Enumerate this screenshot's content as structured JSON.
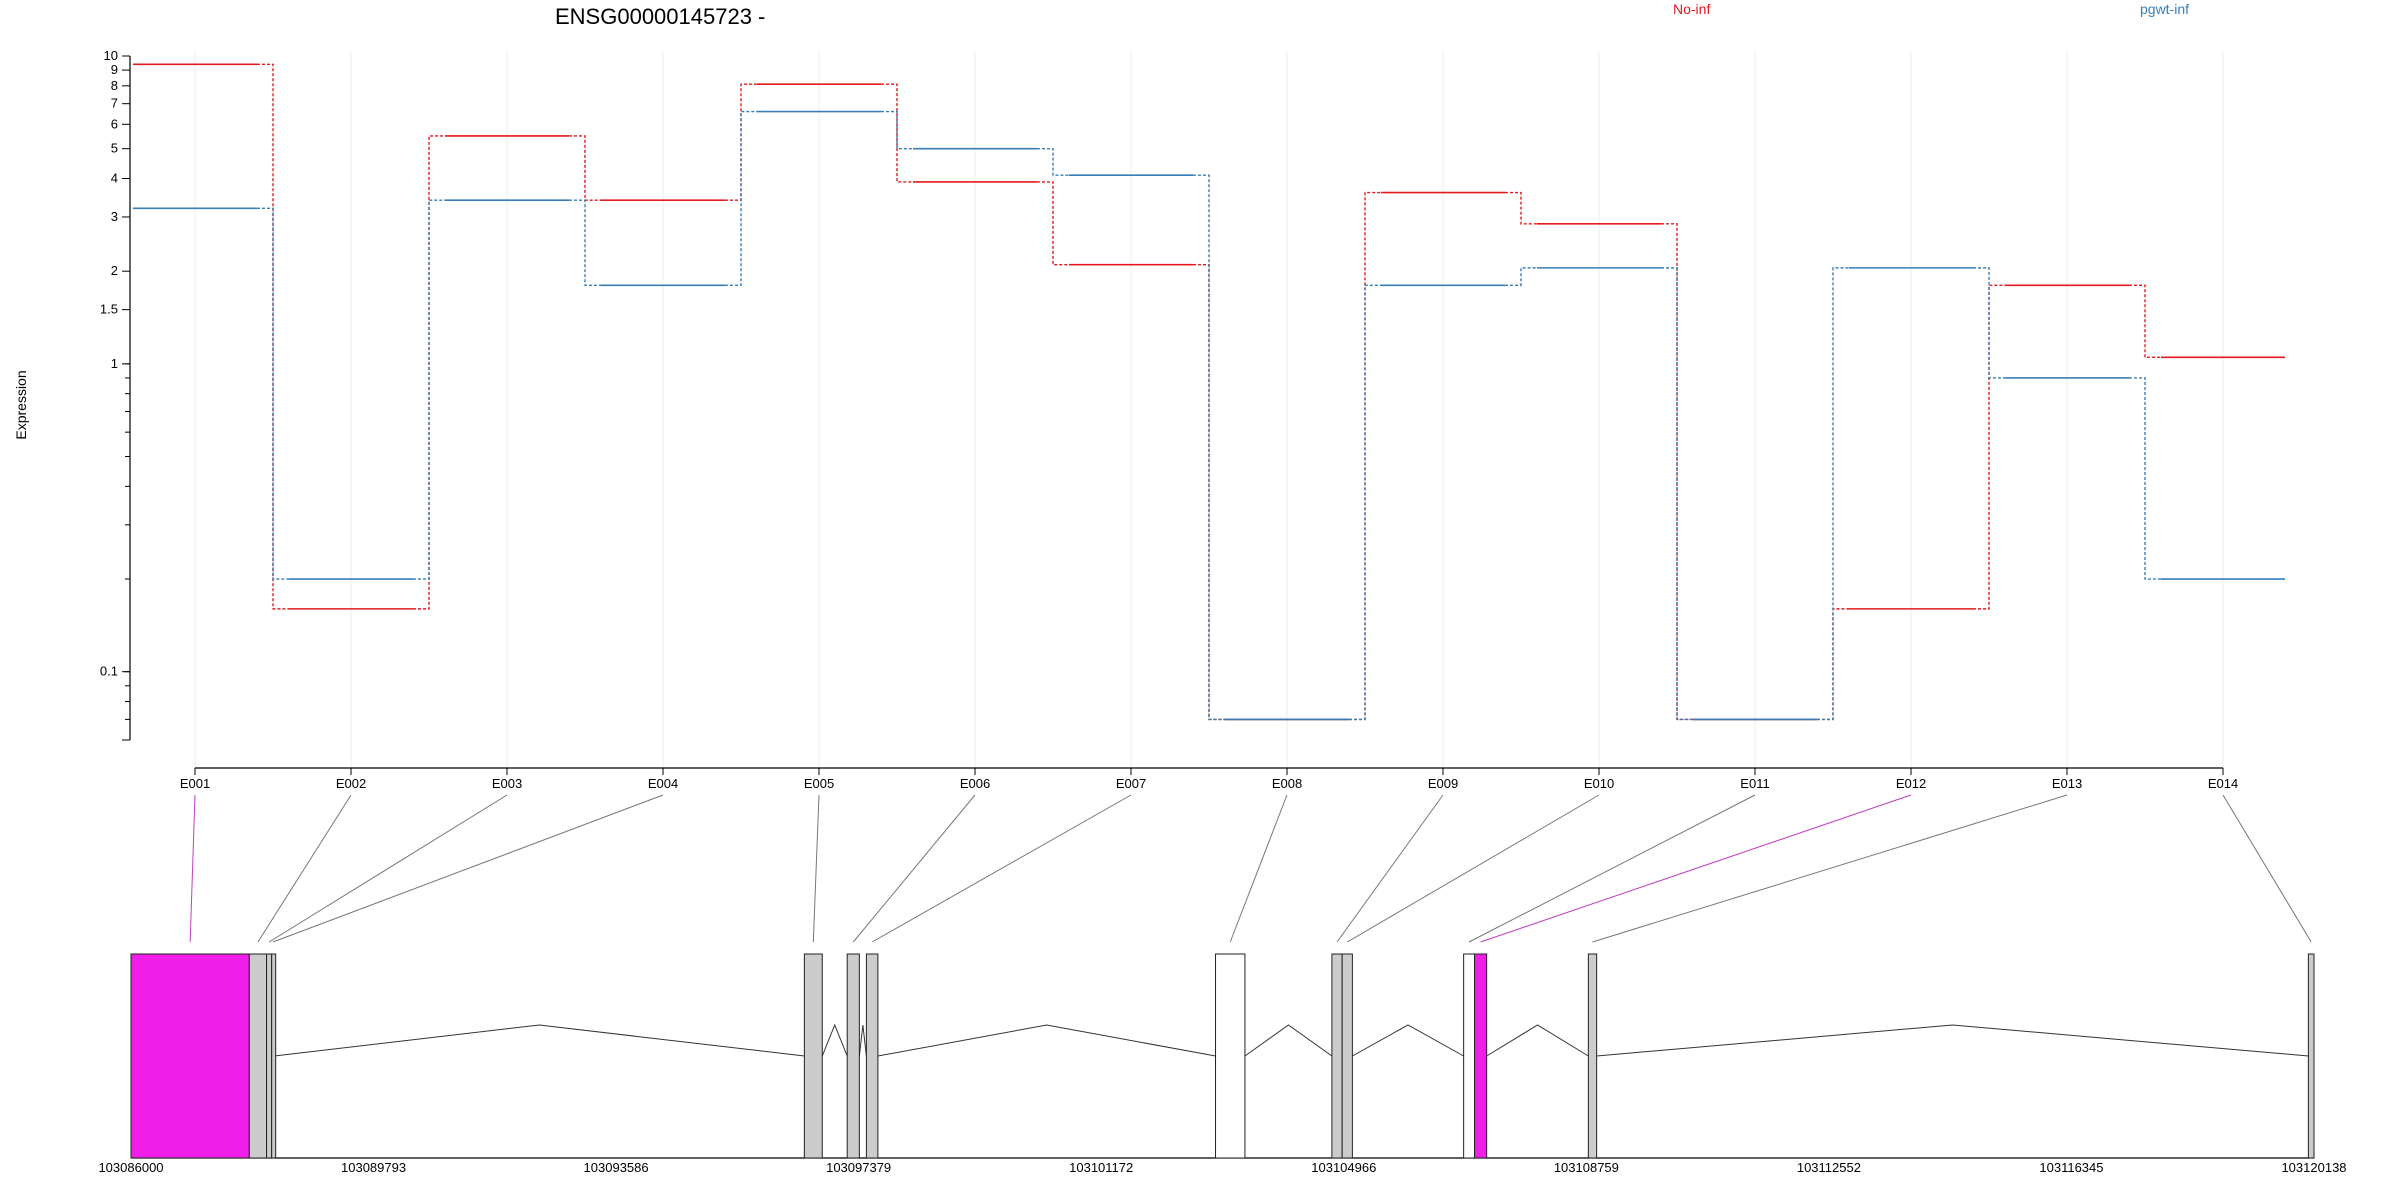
{
  "chart_data": {
    "type": "line",
    "title": "ENSG00000145723 -",
    "ylabel": "Expression",
    "y_scale": "log",
    "ylim": [
      0.06,
      10
    ],
    "grid": "vertical",
    "legend_placement": "top",
    "y_ticks": [
      "10",
      "9",
      "8",
      "7",
      "6",
      "5",
      "4",
      "3",
      "2",
      "1.5",
      "1",
      "0.1"
    ],
    "categories": [
      "E001",
      "E002",
      "E003",
      "E004",
      "E005",
      "E006",
      "E007",
      "E008",
      "E009",
      "E010",
      "E011",
      "E012",
      "E013",
      "E014"
    ],
    "series": [
      {
        "name": "No-inf",
        "color": "#e41a1c",
        "values": [
          9.4,
          0.16,
          5.5,
          3.4,
          8.1,
          3.9,
          2.1,
          0.07,
          3.6,
          2.85,
          0.07,
          0.16,
          1.8,
          1.05
        ]
      },
      {
        "name": "pgwt-inf",
        "color": "#377eb8",
        "values": [
          3.2,
          0.2,
          3.4,
          1.8,
          6.6,
          5.0,
          4.1,
          0.07,
          1.8,
          2.05,
          0.07,
          2.05,
          0.9,
          0.2
        ]
      }
    ],
    "gene_model": {
      "positions": [
        "103086000",
        "103089793",
        "103093586",
        "103097379",
        "103101172",
        "103104966",
        "103108759",
        "103112552",
        "103116345",
        "103120138"
      ],
      "range": [
        103086000,
        103120138
      ],
      "highlight_color": "#f01ee8",
      "exon_color": "#cccccc",
      "exons": [
        {
          "start": 103086000,
          "end": 103087850,
          "fill": "highlight",
          "label": "E001"
        },
        {
          "start": 103087850,
          "end": 103088120,
          "fill": "grey",
          "label": "E002"
        },
        {
          "start": 103088120,
          "end": 103088200,
          "fill": "grey",
          "label": "E003"
        },
        {
          "start": 103088200,
          "end": 103088240,
          "fill": "grey",
          "label": "E004"
        },
        {
          "start": 103096530,
          "end": 103096810,
          "fill": "grey",
          "label": "E005"
        },
        {
          "start": 103097200,
          "end": 103097390,
          "fill": "grey",
          "label": "E006"
        },
        {
          "start": 103097500,
          "end": 103097680,
          "fill": "grey",
          "label": "E007"
        },
        {
          "start": 103102960,
          "end": 103103420,
          "fill": "white",
          "label": "E008"
        },
        {
          "start": 103104780,
          "end": 103104940,
          "fill": "grey",
          "label": "E009"
        },
        {
          "start": 103104940,
          "end": 103105100,
          "fill": "grey",
          "label": "E010"
        },
        {
          "start": 103106840,
          "end": 103107010,
          "fill": "white",
          "label": "E011"
        },
        {
          "start": 103107010,
          "end": 103107200,
          "fill": "highlight",
          "label": "E012"
        },
        {
          "start": 103108790,
          "end": 103108920,
          "fill": "grey",
          "label": "E013"
        },
        {
          "start": 103120050,
          "end": 103120138,
          "fill": "grey",
          "label": "E014"
        }
      ]
    }
  }
}
